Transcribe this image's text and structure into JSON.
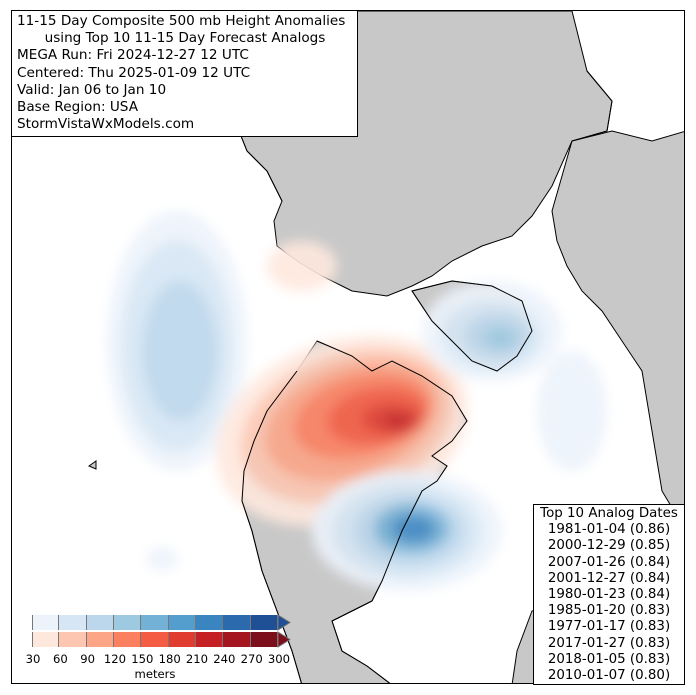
{
  "title": {
    "line1": "11-15 Day Composite 500 mb Height Anomalies",
    "line2": "using Top 10 11-15 Day Forecast Analogs",
    "line3": "MEGA Run: Fri 2024-12-27 12 UTC",
    "line4": "Centered: Thu 2025-01-09 12 UTC",
    "line5": "Valid: Jan 06 to Jan 10",
    "line6": "Base Region: USA",
    "line7": "StormVistaWxModels.com"
  },
  "analogs": {
    "header": "Top 10 Analog Dates",
    "items": [
      "1981-01-04 (0.86)",
      "2000-12-29 (0.85)",
      "2007-01-26 (0.84)",
      "2001-12-27 (0.84)",
      "1980-01-23 (0.84)",
      "1985-01-20 (0.83)",
      "1977-01-17 (0.83)",
      "2017-01-27 (0.83)",
      "2018-01-05 (0.83)",
      "2010-01-07 (0.80)"
    ]
  },
  "colorbar": {
    "ticks": [
      "30",
      "60",
      "90",
      "120",
      "150",
      "180",
      "210",
      "240",
      "270",
      "300"
    ],
    "unit": "meters",
    "blues": [
      "#ecf3fb",
      "#d6e6f4",
      "#bcd7ec",
      "#9ecae1",
      "#74b1d6",
      "#539ecd",
      "#3a84c0",
      "#2a6aad",
      "#1f4f94"
    ],
    "reds": [
      "#fee8de",
      "#fcc6b1",
      "#fca587",
      "#fb8060",
      "#f45c43",
      "#e03c2f",
      "#c52125",
      "#a51520",
      "#7c0f1b"
    ]
  },
  "colors": {
    "land": "#c8c8c8",
    "ocean": "#ffffff",
    "coast": "#000000"
  }
}
